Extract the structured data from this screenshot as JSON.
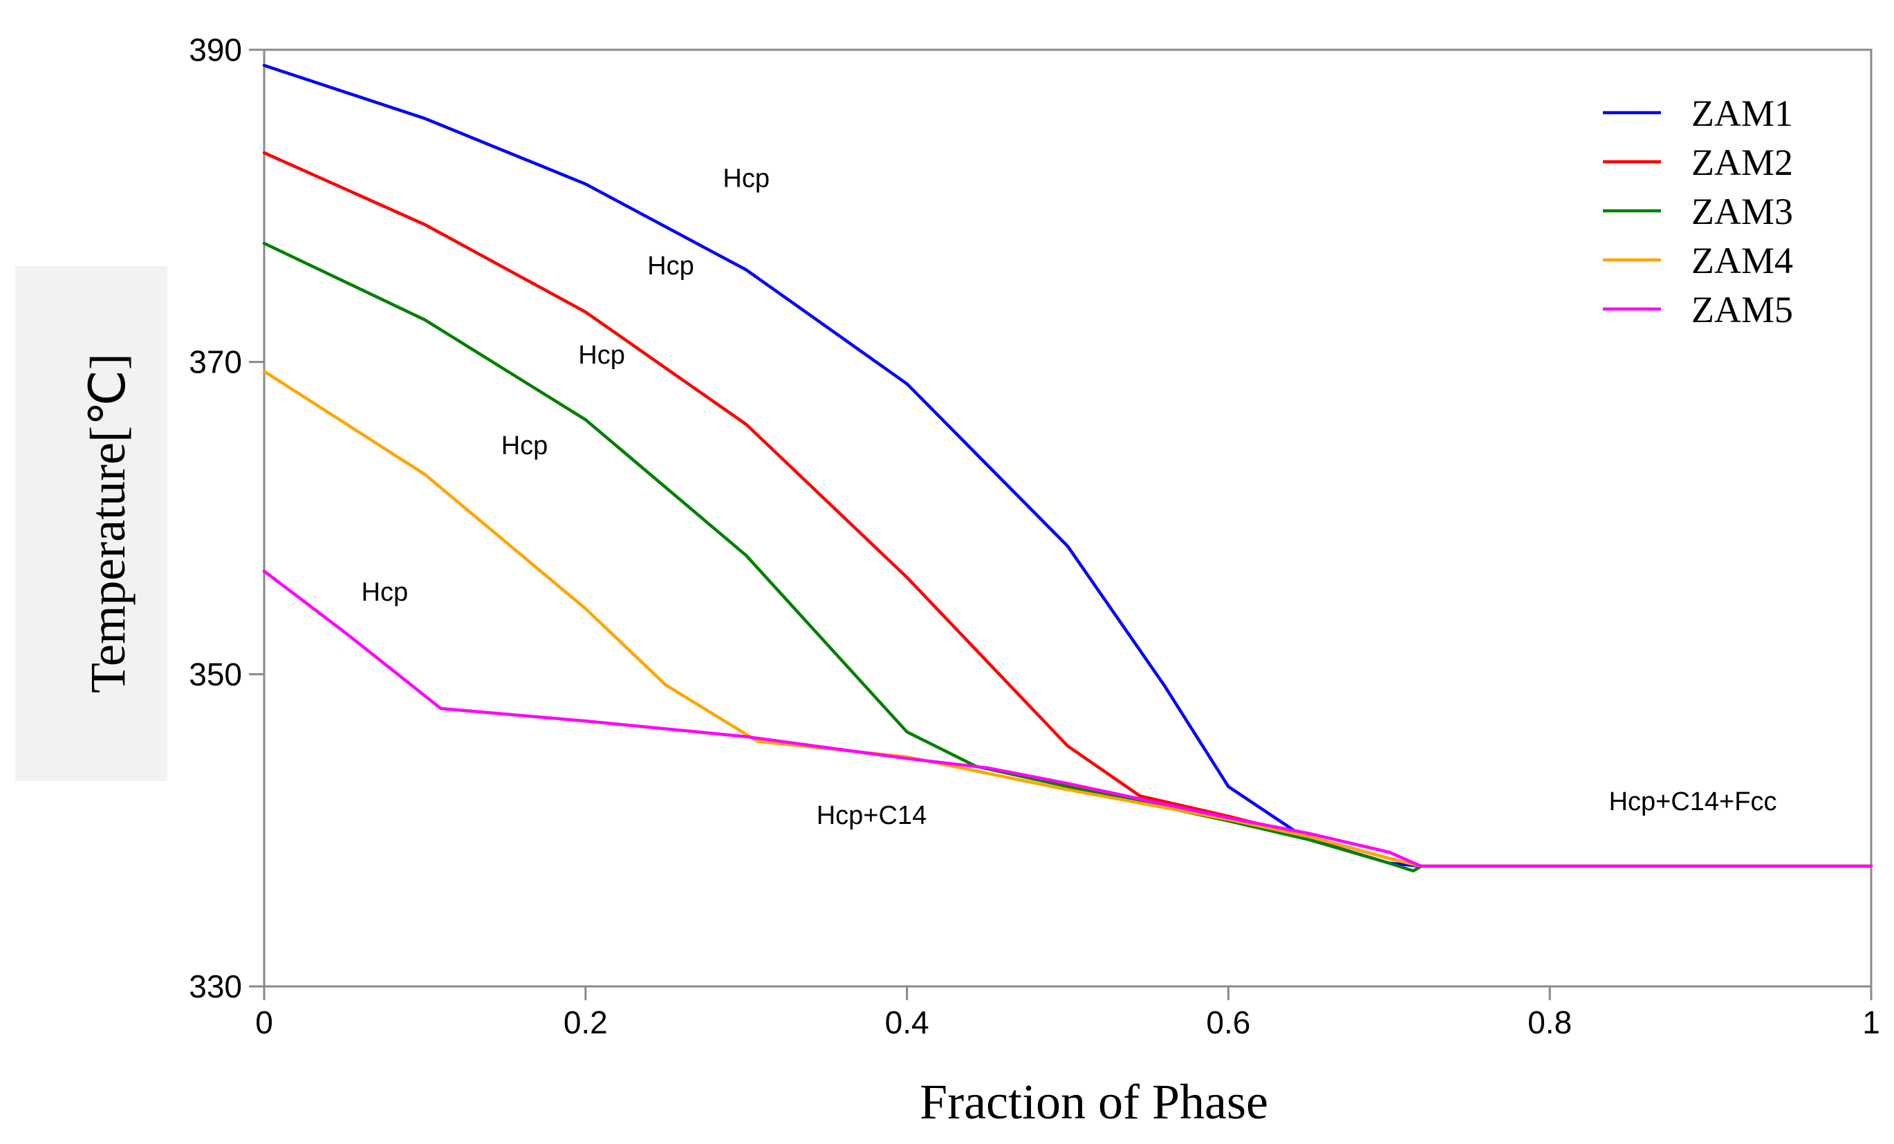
{
  "chart_data": {
    "type": "line",
    "title": "",
    "xlabel": "Fraction of Phase",
    "ylabel": "Temperature[℃]",
    "xlim": [
      0,
      1
    ],
    "ylim": [
      330,
      390
    ],
    "xticks": [
      0,
      0.2,
      0.4,
      0.6,
      0.8,
      1
    ],
    "xtick_labels": [
      "0",
      "0.2",
      "0.4",
      "0.6",
      "0.8",
      "1"
    ],
    "yticks": [
      330,
      350,
      370,
      390
    ],
    "ytick_labels": [
      "330",
      "350",
      "370",
      "390"
    ],
    "legend_position": "top-right",
    "grid": false,
    "series": [
      {
        "name": "ZAM1",
        "color": "#0000ff",
        "x": [
          0,
          0.1,
          0.2,
          0.3,
          0.4,
          0.5,
          0.56,
          0.6,
          0.648,
          0.7,
          0.72,
          1.0
        ],
        "y": [
          389,
          385.6,
          381.4,
          375.9,
          368.6,
          358.2,
          349.3,
          342.8,
          339.5,
          337.9,
          337.7,
          337.7
        ]
      },
      {
        "name": "ZAM2",
        "color": "#ff0000",
        "x": [
          0,
          0.1,
          0.2,
          0.3,
          0.4,
          0.5,
          0.545,
          0.6,
          0.65,
          0.7,
          0.72,
          1.0
        ],
        "y": [
          383.4,
          378.8,
          373.2,
          366,
          356.2,
          345.4,
          342.2,
          340.9,
          339.6,
          338.2,
          337.7,
          337.7
        ]
      },
      {
        "name": "ZAM3",
        "color": "#008000",
        "x": [
          0,
          0.1,
          0.2,
          0.3,
          0.4,
          0.443,
          0.5,
          0.6,
          0.65,
          0.7,
          0.715,
          0.72,
          1.0
        ],
        "y": [
          377.6,
          372.7,
          366.3,
          357.6,
          346.3,
          344.1,
          342.8,
          340.6,
          339.4,
          337.9,
          337.4,
          337.7,
          337.7
        ]
      },
      {
        "name": "ZAM4",
        "color": "#ffa500",
        "x": [
          0,
          0.1,
          0.2,
          0.25,
          0.307,
          0.4,
          0.5,
          0.6,
          0.65,
          0.7,
          0.72,
          1.0
        ],
        "y": [
          369.4,
          362.8,
          354.2,
          349.3,
          345.7,
          344.7,
          342.6,
          340.7,
          339.6,
          338.2,
          337.7,
          337.7
        ]
      },
      {
        "name": "ZAM5",
        "color": "#ff00ff",
        "x": [
          0,
          0.05,
          0.11,
          0.2,
          0.3,
          0.35,
          0.4,
          0.45,
          0.5,
          0.6,
          0.65,
          0.7,
          0.72,
          1.0
        ],
        "y": [
          356.6,
          352.7,
          347.8,
          347,
          346,
          345.3,
          344.6,
          344,
          343,
          340.8,
          339.8,
          338.6,
          337.7,
          337.7
        ]
      }
    ],
    "annotations": [
      {
        "text": "Hcp",
        "x": 0.3,
        "y": 381.2
      },
      {
        "text": "Hcp",
        "x": 0.253,
        "y": 375.6
      },
      {
        "text": "Hcp",
        "x": 0.21,
        "y": 369.9
      },
      {
        "text": "Hcp",
        "x": 0.162,
        "y": 364.1
      },
      {
        "text": "Hcp",
        "x": 0.075,
        "y": 354.7
      },
      {
        "text": "Hcp+C14",
        "x": 0.378,
        "y": 340.4
      },
      {
        "text": "Hcp+C14+Fcc",
        "x": 0.889,
        "y": 341.3
      }
    ]
  }
}
